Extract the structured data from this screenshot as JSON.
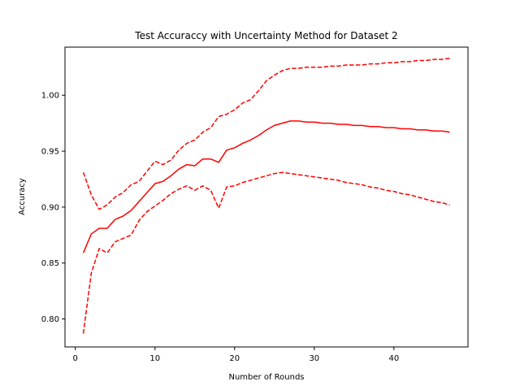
{
  "chart_data": {
    "type": "line",
    "title": "Test Accuraccy with Uncertainty Method for Dataset 2",
    "xlabel": "Number of Rounds",
    "ylabel": "Accuracy",
    "xlim": [
      -1.3,
      49.3
    ],
    "ylim": [
      0.775,
      1.043
    ],
    "xticks": [
      0,
      10,
      20,
      30,
      40
    ],
    "yticks": [
      0.8,
      0.85,
      0.9,
      0.95,
      1.0
    ],
    "ytick_labels": [
      "0.80",
      "0.85",
      "0.90",
      "0.95",
      "1.00"
    ],
    "grid": false,
    "series": [
      {
        "role": "upper-bound",
        "style": "dashed",
        "color": "#ff0000",
        "x": [
          1,
          2,
          3,
          4,
          5,
          6,
          7,
          8,
          9,
          10,
          11,
          12,
          13,
          14,
          15,
          16,
          17,
          18,
          19,
          20,
          21,
          22,
          23,
          24,
          25,
          26,
          27,
          28,
          29,
          30,
          31,
          32,
          33,
          34,
          35,
          36,
          37,
          38,
          39,
          40,
          41,
          42,
          43,
          44,
          45,
          46,
          47
        ],
        "y": [
          0.931,
          0.911,
          0.898,
          0.902,
          0.909,
          0.913,
          0.92,
          0.923,
          0.932,
          0.941,
          0.938,
          0.942,
          0.951,
          0.957,
          0.96,
          0.967,
          0.971,
          0.981,
          0.983,
          0.987,
          0.993,
          0.996,
          1.004,
          1.013,
          1.018,
          1.022,
          1.024,
          1.024,
          1.025,
          1.025,
          1.025,
          1.026,
          1.026,
          1.027,
          1.027,
          1.027,
          1.028,
          1.028,
          1.029,
          1.029,
          1.03,
          1.03,
          1.031,
          1.031,
          1.032,
          1.032,
          1.033
        ]
      },
      {
        "role": "mean",
        "style": "solid",
        "color": "#ff0000",
        "x": [
          1,
          2,
          3,
          4,
          5,
          6,
          7,
          8,
          9,
          10,
          11,
          12,
          13,
          14,
          15,
          16,
          17,
          18,
          19,
          20,
          21,
          22,
          23,
          24,
          25,
          26,
          27,
          28,
          29,
          30,
          31,
          32,
          33,
          34,
          35,
          36,
          37,
          38,
          39,
          40,
          41,
          42,
          43,
          44,
          45,
          46,
          47
        ],
        "y": [
          0.859,
          0.876,
          0.881,
          0.881,
          0.889,
          0.892,
          0.897,
          0.905,
          0.913,
          0.921,
          0.923,
          0.928,
          0.934,
          0.938,
          0.937,
          0.943,
          0.943,
          0.94,
          0.951,
          0.953,
          0.957,
          0.96,
          0.964,
          0.969,
          0.973,
          0.975,
          0.977,
          0.977,
          0.976,
          0.976,
          0.975,
          0.975,
          0.974,
          0.974,
          0.973,
          0.973,
          0.972,
          0.972,
          0.971,
          0.971,
          0.97,
          0.97,
          0.969,
          0.969,
          0.968,
          0.968,
          0.967
        ]
      },
      {
        "role": "lower-bound",
        "style": "dashed",
        "color": "#ff0000",
        "x": [
          1,
          2,
          3,
          4,
          5,
          6,
          7,
          8,
          9,
          10,
          11,
          12,
          13,
          14,
          15,
          16,
          17,
          18,
          19,
          20,
          21,
          22,
          23,
          24,
          25,
          26,
          27,
          28,
          29,
          30,
          31,
          32,
          33,
          34,
          35,
          36,
          37,
          38,
          39,
          40,
          41,
          42,
          43,
          44,
          45,
          46,
          47
        ],
        "y": [
          0.787,
          0.841,
          0.863,
          0.859,
          0.869,
          0.872,
          0.875,
          0.888,
          0.896,
          0.901,
          0.906,
          0.912,
          0.916,
          0.919,
          0.915,
          0.919,
          0.915,
          0.899,
          0.918,
          0.919,
          0.922,
          0.924,
          0.926,
          0.928,
          0.93,
          0.931,
          0.93,
          0.929,
          0.928,
          0.927,
          0.926,
          0.925,
          0.924,
          0.922,
          0.921,
          0.92,
          0.918,
          0.917,
          0.915,
          0.914,
          0.912,
          0.911,
          0.909,
          0.907,
          0.905,
          0.904,
          0.902
        ]
      }
    ]
  }
}
